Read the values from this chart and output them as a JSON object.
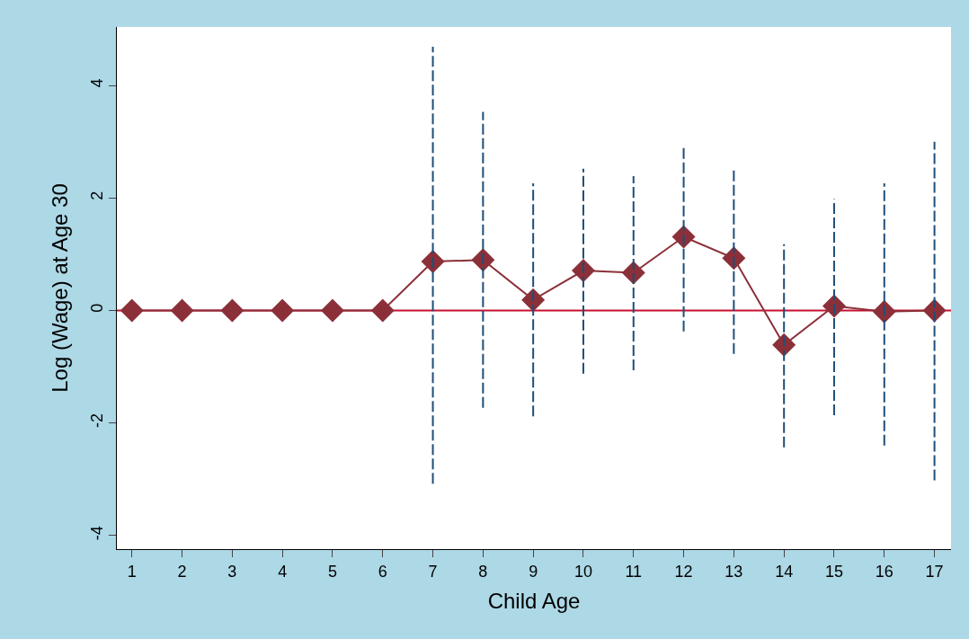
{
  "chart_data": {
    "type": "line",
    "xlabel": "Child Age",
    "ylabel": "Log (Wage) at Age 30",
    "x": [
      1,
      2,
      3,
      4,
      5,
      6,
      7,
      8,
      9,
      10,
      11,
      12,
      13,
      14,
      15,
      16,
      17
    ],
    "series": [
      {
        "color": "#8b3039",
        "values": [
          0,
          0,
          0,
          0,
          0,
          0,
          0.87,
          0.9,
          0.19,
          0.71,
          0.67,
          1.31,
          0.93,
          -0.61,
          0.08,
          -0.02,
          0
        ],
        "errors": [
          null,
          null,
          null,
          null,
          null,
          null,
          [
            -3.08,
            4.69
          ],
          [
            -1.73,
            3.53
          ],
          [
            -1.88,
            2.26
          ],
          [
            -1.12,
            2.52
          ],
          [
            -1.06,
            2.39
          ],
          [
            -0.37,
            2.92
          ],
          [
            -0.77,
            2.53
          ],
          [
            -2.43,
            1.18
          ],
          [
            -1.86,
            1.98
          ],
          [
            -2.4,
            2.26
          ],
          [
            -3.02,
            3.0
          ]
        ]
      }
    ],
    "marker": "diamond",
    "line_style": "solid",
    "xlim": [
      0.7,
      17.33
    ],
    "xticks": [
      1,
      2,
      3,
      4,
      5,
      6,
      7,
      8,
      9,
      10,
      11,
      12,
      13,
      14,
      15,
      16,
      17
    ],
    "ylim": [
      -4.24,
      5.04
    ],
    "yticks": [
      -4,
      -2,
      0,
      2,
      4
    ],
    "ref_lines": [
      {
        "axis": "y",
        "value": 0,
        "color": "#c8102e"
      }
    ],
    "grid": false
  }
}
